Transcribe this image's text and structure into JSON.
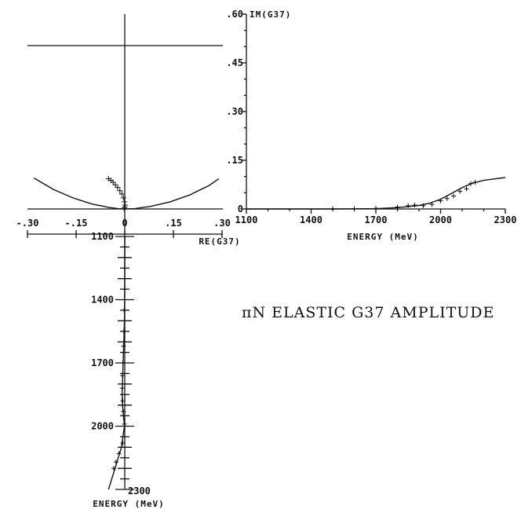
{
  "title": "πN ELASTIC G37 AMPLITUDE",
  "chart_data": [
    {
      "type": "line",
      "name": "argand",
      "xlabel": "RE(G37)",
      "ylabel": "",
      "xlim": [
        -0.3,
        0.3
      ],
      "x_ticks": [
        -0.3,
        -0.15,
        0,
        0.15,
        0.3
      ],
      "x_tick_labels": [
        "-.30",
        "-.15",
        "0",
        ".15",
        ".30"
      ],
      "curve": {
        "x": [
          -0.28,
          -0.22,
          -0.16,
          -0.1,
          -0.05,
          -0.02,
          0,
          0.03,
          0.08,
          0.14,
          0.2,
          0.26,
          0.29
        ],
        "y": [
          0.095,
          0.06,
          0.034,
          0.015,
          0.005,
          0.001,
          0,
          0.001,
          0.008,
          0.022,
          0.043,
          0.072,
          0.093
        ]
      },
      "points": {
        "x": [
          -0.05,
          -0.043,
          -0.036,
          -0.029,
          -0.022,
          -0.015,
          -0.009,
          -0.004,
          -0.001,
          0.001,
          0.0,
          -0.002
        ],
        "y": [
          0.093,
          0.088,
          0.082,
          0.074,
          0.066,
          0.056,
          0.046,
          0.034,
          0.022,
          0.012,
          0.006,
          0.002
        ]
      }
    },
    {
      "type": "line",
      "name": "energy-vs-re",
      "xlabel": "",
      "ylabel": "ENERGY (MeV)",
      "ylim": [
        1100,
        2300
      ],
      "y_ticks": [
        1100,
        1400,
        1700,
        2000,
        2300
      ],
      "curve": {
        "x": [
          0,
          0.0,
          -0.001,
          -0.003,
          -0.005,
          -0.007,
          -0.008,
          -0.007,
          -0.004,
          -0.001,
          -0.01,
          -0.03,
          -0.05
        ],
        "y": [
          1100,
          1300,
          1500,
          1600,
          1700,
          1800,
          1850,
          1900,
          1950,
          2000,
          2100,
          2200,
          2300
        ]
      },
      "points": {
        "x": [
          0,
          -0.001,
          -0.002,
          -0.003,
          -0.004,
          -0.006,
          -0.007,
          -0.008,
          -0.006,
          -0.004,
          -0.001,
          -0.006,
          -0.018,
          -0.027,
          -0.034
        ],
        "y": [
          1200,
          1350,
          1450,
          1550,
          1620,
          1700,
          1760,
          1820,
          1880,
          1930,
          1990,
          2080,
          2130,
          2170,
          2200
        ]
      }
    },
    {
      "type": "line",
      "name": "im-vs-energy",
      "xlabel": "ENERGY (MeV)",
      "ylabel": "IM(G37)",
      "xlim": [
        1100,
        2300
      ],
      "ylim": [
        0,
        0.6
      ],
      "x_ticks": [
        1100,
        1400,
        1700,
        2000,
        2300
      ],
      "y_ticks": [
        0,
        0.15,
        0.3,
        0.45,
        0.6
      ],
      "y_tick_labels": [
        "0",
        ".15",
        ".30",
        ".45",
        ".60"
      ],
      "curve": {
        "x": [
          1100,
          1300,
          1500,
          1700,
          1800,
          1900,
          1950,
          2000,
          2050,
          2100,
          2150,
          2200,
          2300
        ],
        "y": [
          0,
          0,
          0,
          0.001,
          0.004,
          0.011,
          0.018,
          0.03,
          0.048,
          0.066,
          0.08,
          0.088,
          0.097
        ]
      },
      "points": {
        "x": [
          1500,
          1600,
          1700,
          1800,
          1850,
          1880,
          1920,
          1960,
          2000,
          2030,
          2060,
          2090,
          2120,
          2140,
          2160
        ],
        "y": [
          0.001,
          0.001,
          0.002,
          0.006,
          0.01,
          0.012,
          0.01,
          0.014,
          0.025,
          0.032,
          0.04,
          0.054,
          0.062,
          0.078,
          0.082
        ]
      }
    }
  ]
}
